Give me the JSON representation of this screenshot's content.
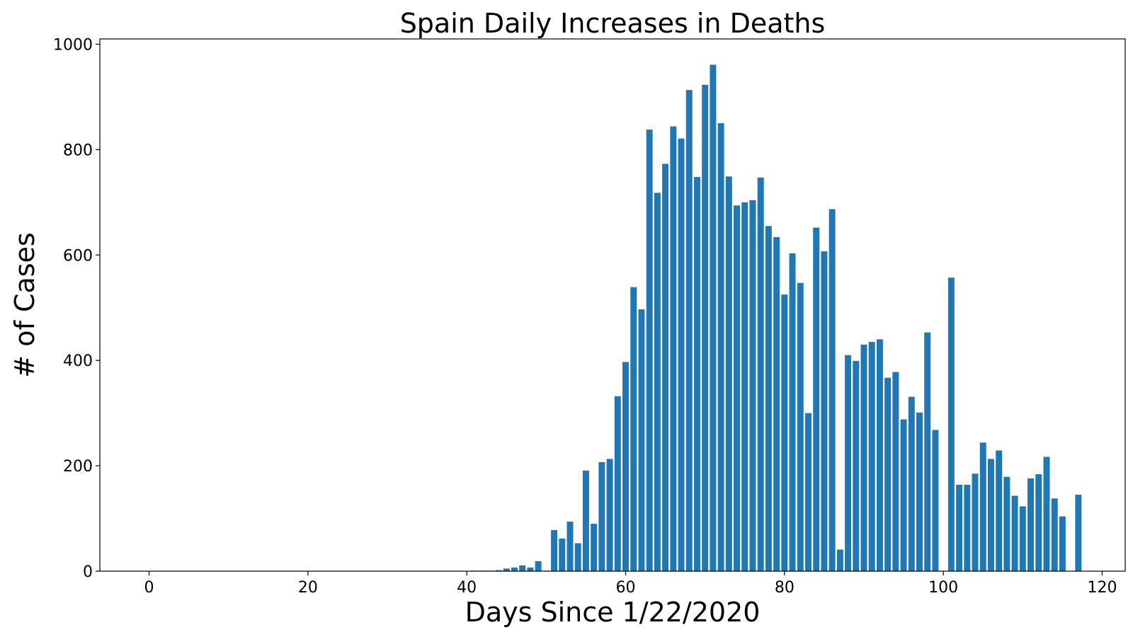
{
  "chart_data": {
    "type": "bar",
    "title": "Spain Daily Increases in Deaths",
    "xlabel": "Days Since 1/22/2020",
    "ylabel": "# of Cases",
    "xlim": [
      -6.2,
      122.9
    ],
    "ylim": [
      0,
      1010
    ],
    "xticks": [
      0,
      20,
      40,
      60,
      80,
      100,
      120
    ],
    "yticks": [
      0,
      200,
      400,
      600,
      800,
      1000
    ],
    "grid": false,
    "bar_color": "#1f77b4",
    "x": [
      0,
      1,
      2,
      3,
      4,
      5,
      6,
      7,
      8,
      9,
      10,
      11,
      12,
      13,
      14,
      15,
      16,
      17,
      18,
      19,
      20,
      21,
      22,
      23,
      24,
      25,
      26,
      27,
      28,
      29,
      30,
      31,
      32,
      33,
      34,
      35,
      36,
      37,
      38,
      39,
      40,
      41,
      42,
      43,
      44,
      45,
      46,
      47,
      48,
      49,
      50,
      51,
      52,
      53,
      54,
      55,
      56,
      57,
      58,
      59,
      60,
      61,
      62,
      63,
      64,
      65,
      66,
      67,
      68,
      69,
      70,
      71,
      72,
      73,
      74,
      75,
      76,
      77,
      78,
      79,
      80,
      81,
      82,
      83,
      84,
      85,
      86,
      87,
      88,
      89,
      90,
      91,
      92,
      93,
      94,
      95,
      96,
      97,
      98,
      99,
      100,
      101,
      102,
      103,
      104,
      105,
      106,
      107,
      108,
      109,
      110,
      111,
      112,
      113,
      114,
      115,
      116,
      117
    ],
    "values": [
      0,
      0,
      0,
      0,
      0,
      0,
      0,
      0,
      0,
      0,
      0,
      0,
      0,
      0,
      0,
      0,
      0,
      0,
      0,
      0,
      0,
      0,
      0,
      0,
      0,
      0,
      0,
      0,
      0,
      0,
      0,
      0,
      0,
      0,
      0,
      0,
      0,
      0,
      0,
      0,
      0,
      1,
      1,
      1,
      2,
      5,
      7,
      11,
      7,
      19,
      1,
      78,
      62,
      94,
      53,
      191,
      90,
      207,
      213,
      332,
      397,
      539,
      497,
      838,
      718,
      773,
      844,
      821,
      913,
      748,
      923,
      961,
      850,
      749,
      694,
      700,
      704,
      747,
      655,
      634,
      525,
      603,
      547,
      300,
      652,
      607,
      687,
      41,
      410,
      399,
      430,
      435,
      440,
      367,
      378,
      288,
      331,
      301,
      453,
      268,
      0,
      557,
      164,
      164,
      185,
      244,
      213,
      229,
      179,
      143,
      123,
      176,
      184,
      217,
      138,
      104,
      0,
      145
    ]
  }
}
